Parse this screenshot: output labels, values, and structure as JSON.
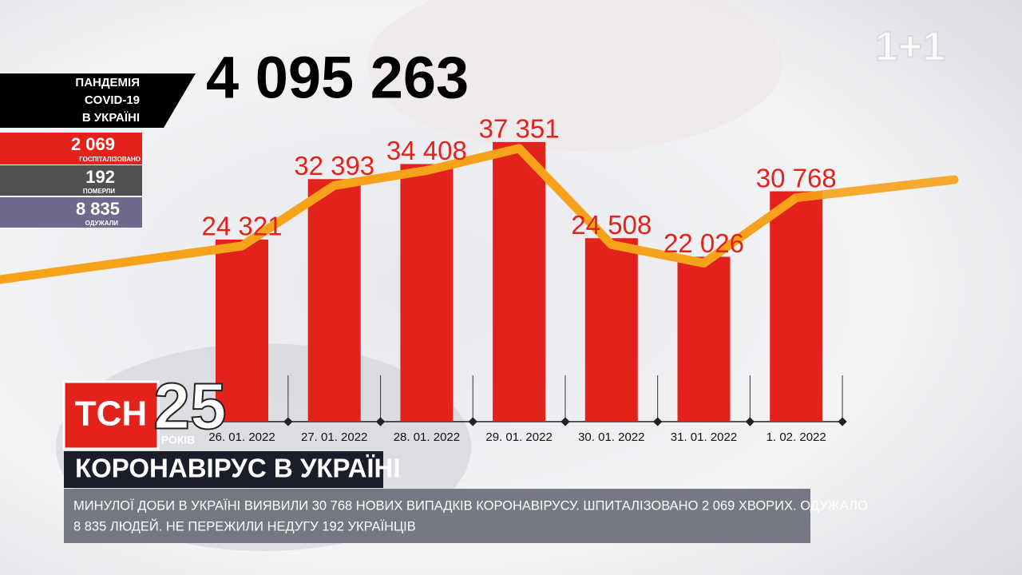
{
  "chart_data": {
    "type": "bar",
    "title": "4 095 263",
    "categories": [
      "26. 01. 2022",
      "27. 01. 2022",
      "28. 01. 2022",
      "29. 01. 2022",
      "30. 01. 2022",
      "31. 01. 2022",
      "1. 02. 2022"
    ],
    "values": [
      24321,
      32393,
      34408,
      37351,
      24508,
      22026,
      30768
    ],
    "value_labels": [
      "24 321",
      "32 393",
      "34 408",
      "37 351",
      "24 508",
      "22 026",
      "30 768"
    ],
    "color": "#e3231b",
    "trend_color": "#f7a21b"
  },
  "panel": {
    "title": [
      "ПАНДЕМІЯ",
      "COVID-19",
      "В УКРАЇНІ"
    ],
    "stats": [
      {
        "value": "2 069",
        "label": "ГОСПІТАЛІЗОВАНО"
      },
      {
        "value": "192",
        "label": "ПОМЕРЛИ"
      },
      {
        "value": "8 835",
        "label": "ОДУЖАЛИ"
      }
    ]
  },
  "channel_logo": "1+1",
  "show_logo": {
    "name": "ТСН",
    "number": "25",
    "caption": "РОКІВ"
  },
  "headline": "КОРОНАВІРУС В УКРАЇНІ",
  "ticker": [
    "МИНУЛОЇ ДОБИ В УКРАЇНІ ВИЯВИЛИ 30 768 НОВИХ ВИПАДКІВ КОРОНАВІРУСУ. ШПИТАЛІЗОВАНО 2 069 ХВОРИХ. ОДУЖАЛО",
    "8 835 ЛЮДЕЙ. НЕ ПЕРЕЖИЛИ НЕДУГУ 192 УКРАЇНЦІВ"
  ]
}
